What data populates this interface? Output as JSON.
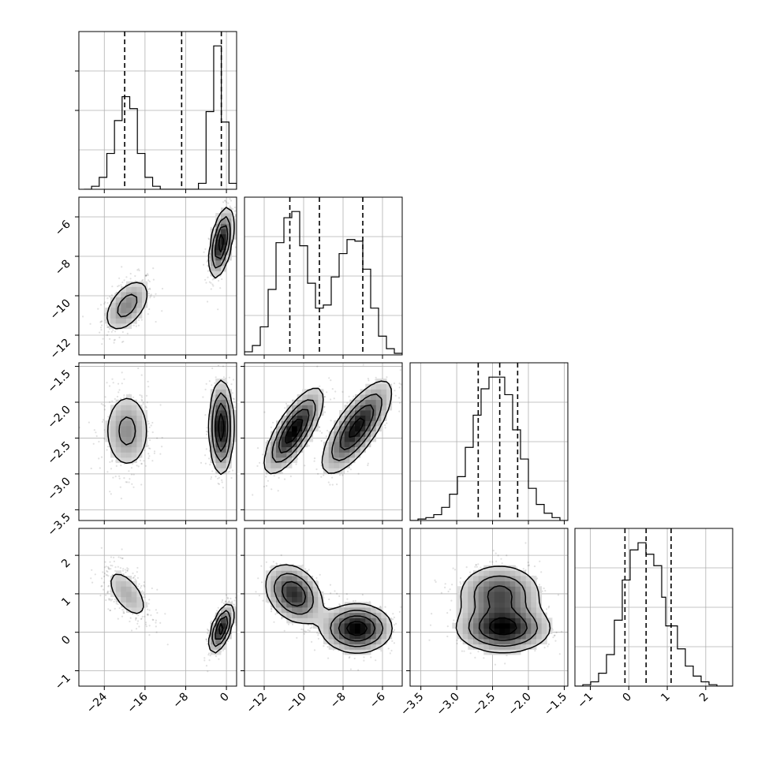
{
  "chart_data": {
    "type": "corner",
    "parameters": [
      {
        "range": [
          -29.0,
          2.0
        ],
        "ticks": [
          -24,
          -16,
          -8,
          0
        ],
        "tick_labels": [
          "−24",
          "−16",
          "−8",
          "0"
        ]
      },
      {
        "range": [
          -13.0,
          -5.0
        ],
        "ticks": [
          -12,
          -10,
          -8,
          -6
        ],
        "tick_labels": [
          "−12",
          "−10",
          "−8",
          "−6"
        ]
      },
      {
        "range": [
          -3.65,
          -1.45
        ],
        "ticks": [
          -3.5,
          -3.0,
          -2.5,
          -2.0,
          -1.5
        ],
        "tick_labels": [
          "−3.5",
          "−3.0",
          "−2.5",
          "−2.0",
          "−1.5"
        ]
      },
      {
        "range": [
          -1.4,
          2.7
        ],
        "ticks": [
          -1,
          0,
          1,
          2
        ],
        "tick_labels": [
          "−1",
          "0",
          "1",
          "2"
        ]
      }
    ],
    "histograms": [
      {
        "edges": [
          -28.0,
          -26.5,
          -25.0,
          -23.5,
          -22.0,
          -20.5,
          -19.0,
          -17.5,
          -16.0,
          -14.5,
          -13.0,
          -11.5,
          -10.0,
          -8.5,
          -7.0,
          -5.5,
          -4.0,
          -2.5,
          -1.0,
          0.5,
          2.0
        ],
        "counts": [
          0,
          2,
          8,
          24,
          46,
          62,
          54,
          24,
          8,
          2,
          0,
          0,
          0,
          0,
          0,
          4,
          52,
          96,
          45,
          4
        ],
        "quantiles": [
          -20.0,
          -8.8,
          -1.0
        ]
      },
      {
        "edges": [
          -13.0,
          -12.6,
          -12.2,
          -11.8,
          -11.4,
          -11.0,
          -10.6,
          -10.2,
          -9.8,
          -9.4,
          -9.0,
          -8.6,
          -8.2,
          -7.8,
          -7.4,
          -7.0,
          -6.6,
          -6.2,
          -5.8,
          -5.4,
          -5.0
        ],
        "counts": [
          2,
          6,
          18,
          42,
          72,
          88,
          92,
          70,
          46,
          30,
          32,
          50,
          65,
          74,
          73,
          55,
          30,
          12,
          4,
          1
        ],
        "quantiles": [
          -10.7,
          -9.2,
          -7.0
        ]
      },
      {
        "edges": [
          -3.65,
          -3.54,
          -3.43,
          -3.32,
          -3.21,
          -3.1,
          -2.99,
          -2.88,
          -2.77,
          -2.66,
          -2.55,
          -2.44,
          -2.33,
          -2.22,
          -2.11,
          -2.0,
          -1.89,
          -1.78,
          -1.67,
          -1.56,
          -1.45
        ],
        "counts": [
          0,
          1,
          2,
          4,
          9,
          18,
          30,
          50,
          72,
          90,
          98,
          98,
          86,
          62,
          42,
          22,
          11,
          5,
          2,
          0
        ],
        "quantiles": [
          -2.7,
          -2.4,
          -2.15
        ]
      },
      {
        "edges": [
          -1.4,
          -1.195,
          -0.99,
          -0.785,
          -0.58,
          -0.375,
          -0.17,
          0.035,
          0.24,
          0.445,
          0.65,
          0.855,
          0.96,
          1.265,
          1.47,
          1.675,
          1.88,
          2.085,
          2.29,
          2.495,
          2.7
        ],
        "counts": [
          0,
          1,
          3,
          9,
          22,
          46,
          74,
          95,
          100,
          92,
          84,
          62,
          42,
          26,
          14,
          7,
          3,
          1,
          0,
          0
        ],
        "quantiles": [
          -0.1,
          0.45,
          1.1
        ]
      }
    ],
    "clusters": [
      {
        "mean": [
          -19.5,
          -10.5,
          -2.4,
          1.0
        ],
        "sd": [
          2.5,
          0.75,
          0.3,
          0.4
        ],
        "rho": [
          [
            1,
            0.5,
            0,
            -0.6
          ],
          [
            0.5,
            1,
            0.75,
            -0.3
          ],
          [
            0,
            0.75,
            1,
            0
          ],
          [
            -0.6,
            -0.3,
            0,
            1
          ]
        ],
        "weight": 0.45
      },
      {
        "mean": [
          -1.0,
          -7.3,
          -2.35,
          0.1
        ],
        "sd": [
          1.2,
          0.9,
          0.33,
          0.32
        ],
        "rho": [
          [
            1,
            0.5,
            0,
            0.6
          ],
          [
            0.5,
            1,
            0.75,
            0
          ],
          [
            0,
            0.75,
            1,
            0
          ],
          [
            0.6,
            0,
            0,
            1
          ]
        ],
        "weight": 0.55
      }
    ]
  }
}
